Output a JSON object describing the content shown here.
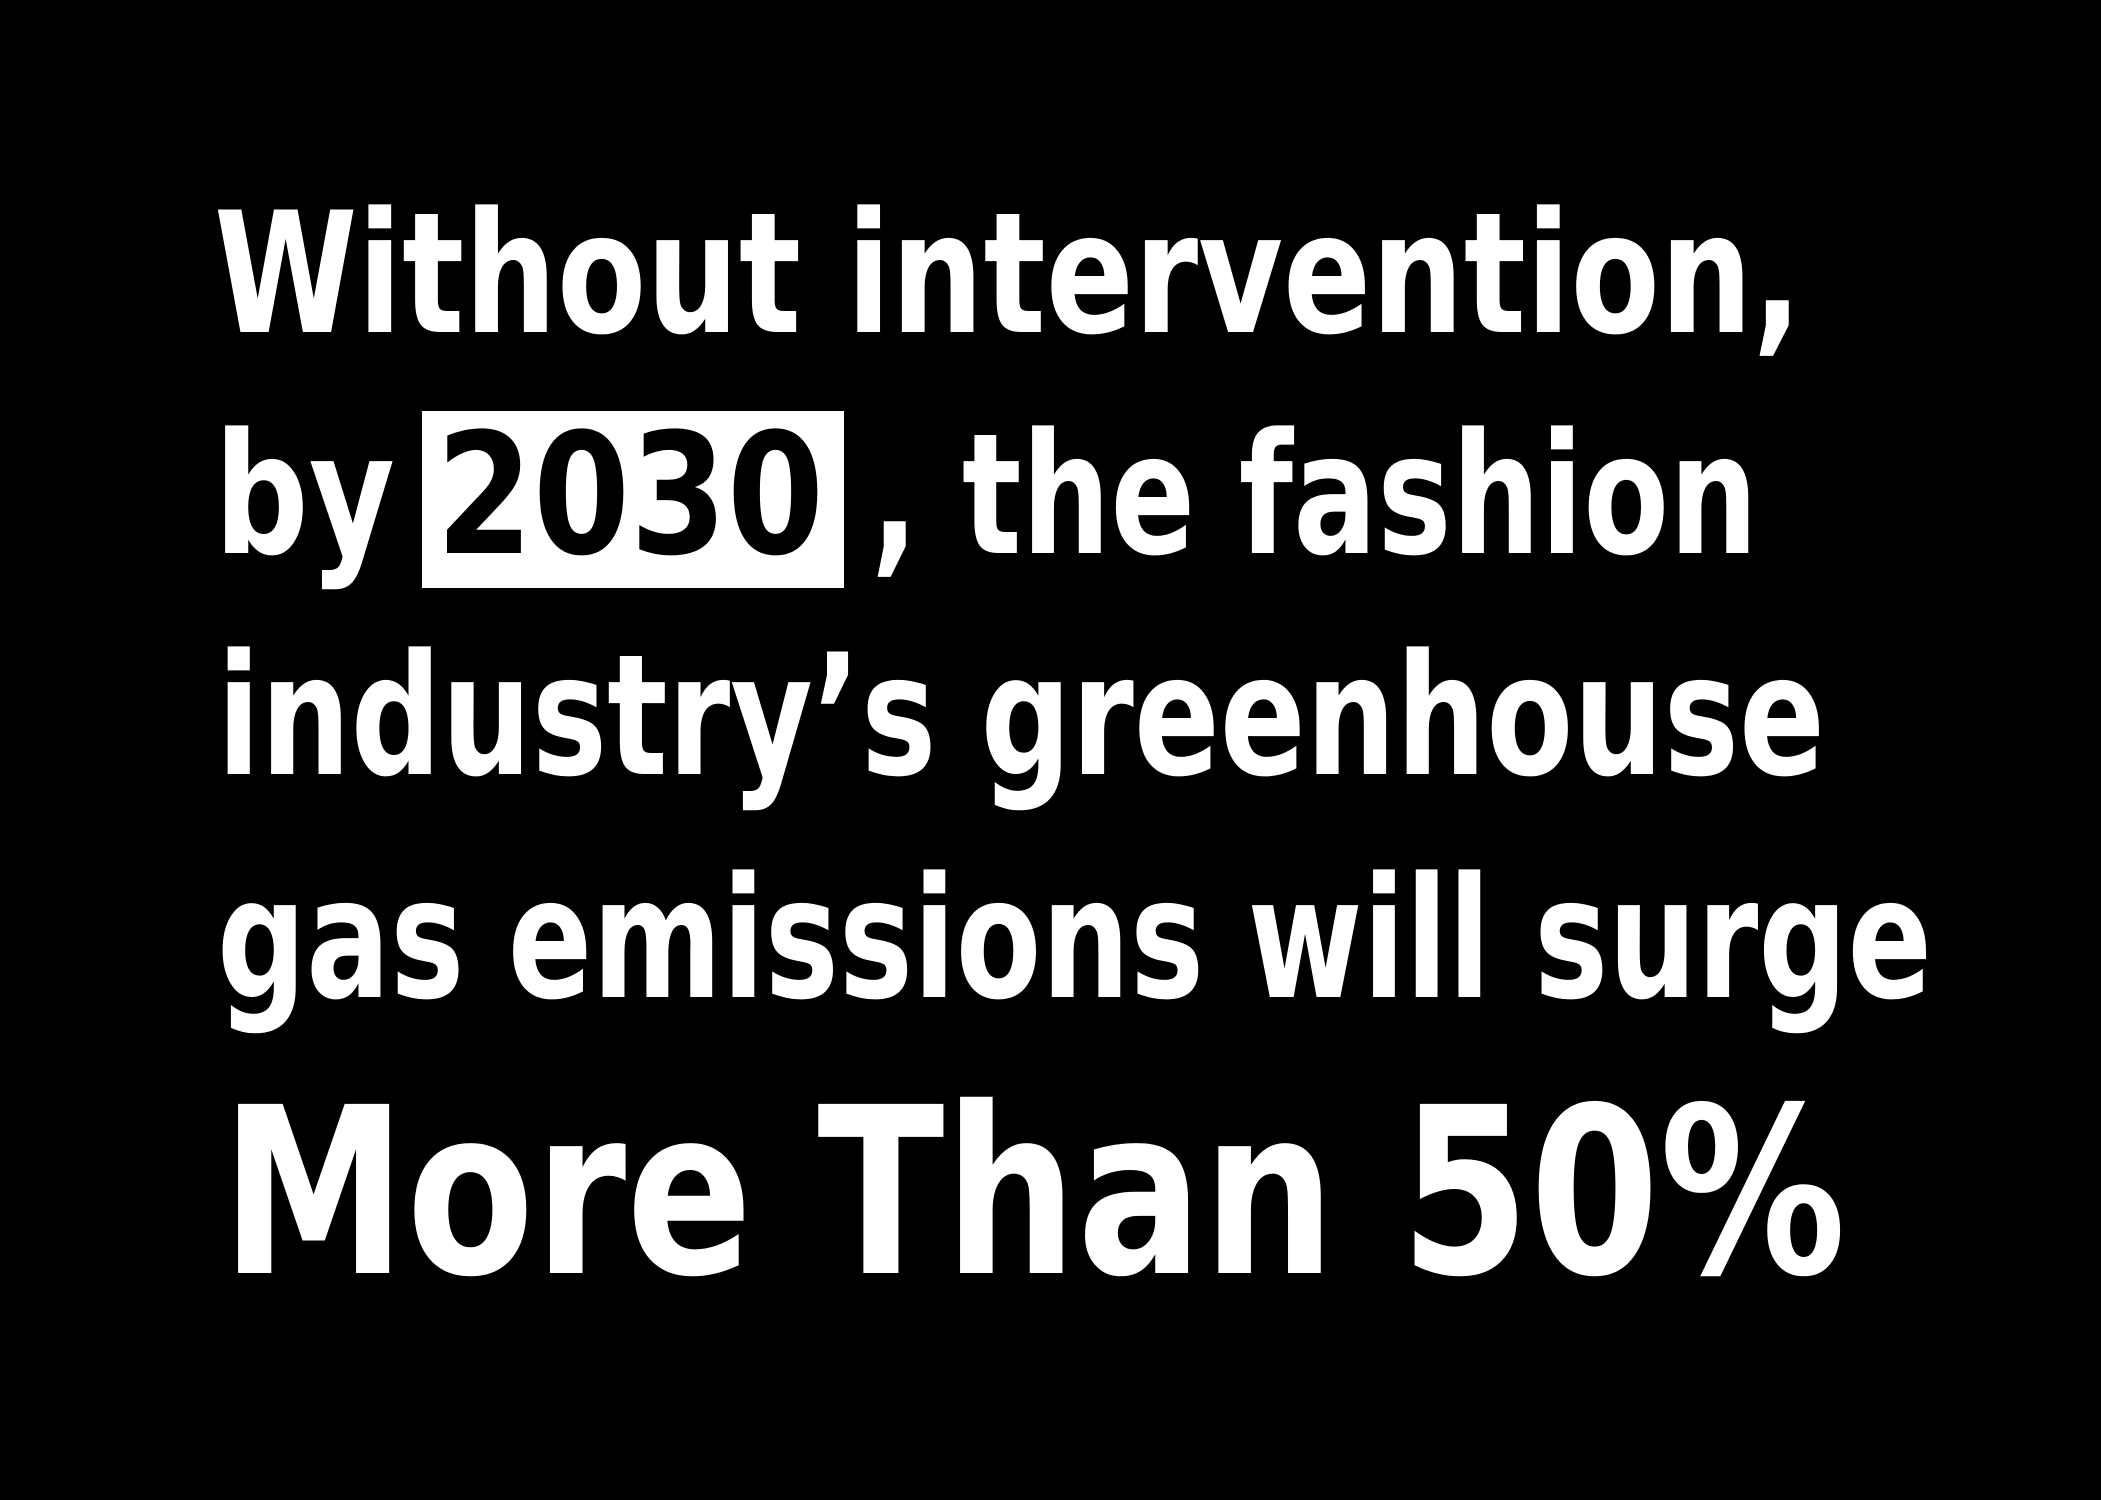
{
  "statement": {
    "line_1": "Without intervention,",
    "line_2_before": "by",
    "highlight": "2030",
    "line_2_after": ", the fashion",
    "line_3": "industry’s greenhouse",
    "line_4": "gas emissions will surge",
    "emphasis": "More Than 50%"
  }
}
